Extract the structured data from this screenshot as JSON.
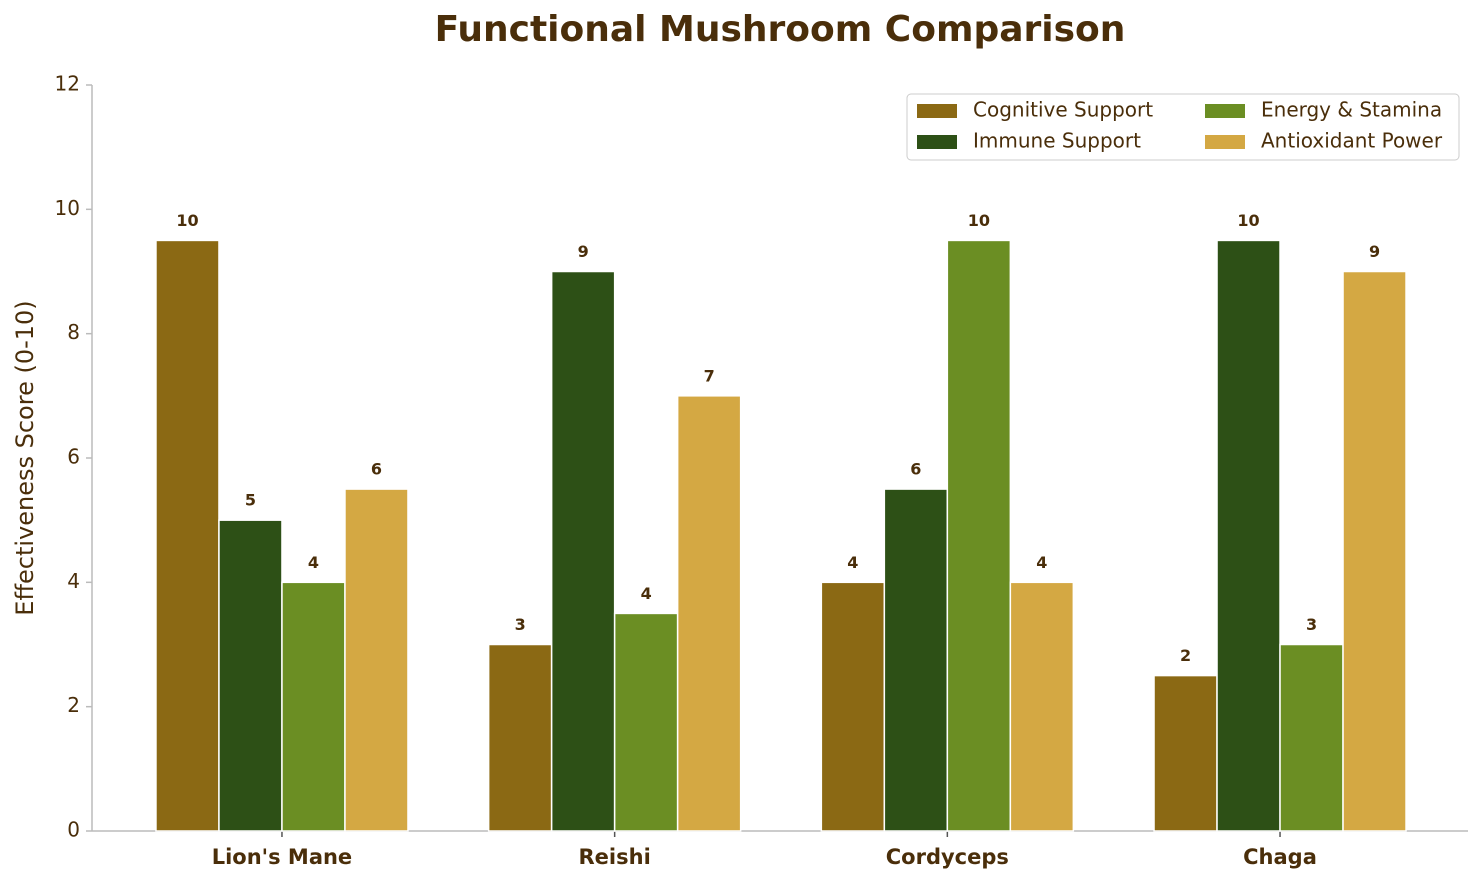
{
  "chart_data": {
    "type": "bar",
    "title": "Functional Mushroom Comparison",
    "y_label": "Effectiveness Score (0-10)",
    "categories": [
      "Lion's Mane",
      "Reishi",
      "Cordyceps",
      "Chaga"
    ],
    "series": [
      {
        "name": "Cognitive Support",
        "color": "#8B6914",
        "values": [
          9.5,
          3,
          4,
          2.5
        ],
        "value_labels": [
          "10",
          "3",
          "4",
          "2"
        ]
      },
      {
        "name": "Immune Support",
        "color": "#2D5016",
        "values": [
          5,
          9,
          5.5,
          9.5
        ],
        "value_labels": [
          "5",
          "9",
          "6",
          "10"
        ]
      },
      {
        "name": "Energy & Stamina",
        "color": "#6B8E23",
        "values": [
          4,
          3.5,
          9.5,
          3
        ],
        "value_labels": [
          "4",
          "4",
          "10",
          "3"
        ]
      },
      {
        "name": "Antioxidant Power",
        "color": "#D4A843",
        "values": [
          5.5,
          7,
          4,
          9
        ],
        "value_labels": [
          "6",
          "7",
          "4",
          "9"
        ]
      }
    ],
    "ylim": [
      0,
      12
    ],
    "yticks": [
      0,
      2,
      4,
      6,
      8,
      10,
      12
    ],
    "grid": false,
    "legend": "upper right"
  }
}
